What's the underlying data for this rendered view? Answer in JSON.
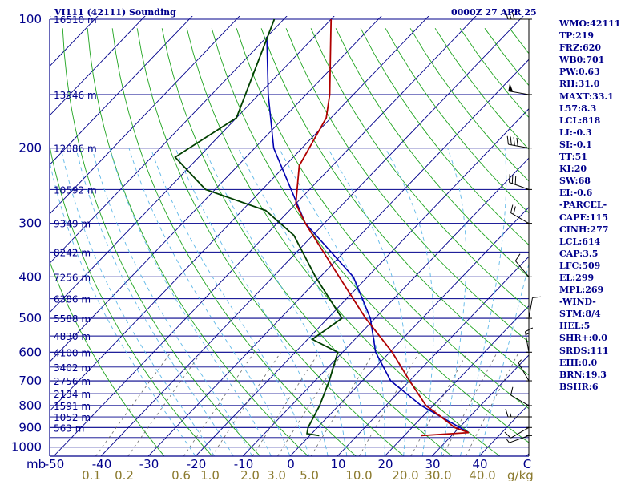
{
  "header": {
    "station": "VI111 (42111) Sounding",
    "time": "0000Z 27 APR 25"
  },
  "indices": [
    "WMO:42111",
    "TP:219",
    "FRZ:620",
    "WB0:701",
    "PW:0.63",
    "RH:31.0",
    "MAXT:33.1",
    "L57:8.3",
    "LCL:818",
    "LI:-0.3",
    "SI:-0.1",
    "TT:51",
    "KI:20",
    "SW:68",
    "EI:-0.6",
    "-PARCEL-",
    "CAPE:115",
    "CINH:277",
    "LCL:614",
    "CAP:3.5",
    "LFC:509",
    "EL:299",
    "MPL:269",
    "-WIND-",
    "STM:8/4",
    "HEL:5",
    "SHR+:0.0",
    "SRDS:111",
    "EHI:0.0",
    "BRN:19.3",
    "BSHR:6"
  ],
  "colors": {
    "isobar": "#00008b",
    "isotherm": "#00008b",
    "dry_adiabat": "#1fa41f",
    "moist_adiabat": "#5fb8e8",
    "mixing_ratio": "#666666",
    "temperature": "#b00000",
    "dewpoint": "#004000",
    "parcel": "#0000b0",
    "wind": "#000000",
    "wind_ratio_labels": "#8b7a2e"
  },
  "chart_data": {
    "type": "skew-t",
    "pressure_unit": "mb",
    "mixing_ratio_unit": "g/kg",
    "pressure_ticks": [
      100,
      200,
      300,
      400,
      500,
      600,
      700,
      800,
      900,
      1000
    ],
    "isotherm_ticks": [
      "-50",
      "-40",
      "-30",
      "-20",
      "-10",
      "0",
      "10",
      "20",
      "30",
      "40",
      "C"
    ],
    "mixing_ratio_ticks": [
      "0.1",
      "0.2",
      "0.6",
      "1.0",
      "2.0",
      "3.0",
      "5.0",
      "10.0",
      "20.0",
      "30.0",
      "40.0"
    ],
    "mixing_ratio_values": [
      0.1,
      0.2,
      0.6,
      1.0,
      2.0,
      3.0,
      5.0,
      10.0,
      20.0,
      30.0,
      40.0
    ],
    "plim": [
      100,
      1050
    ],
    "tlim_at_bottom": [
      -50,
      50
    ],
    "heights": [
      {
        "p": 100,
        "label": "16510 m"
      },
      {
        "p": 150,
        "label": "13946 m"
      },
      {
        "p": 200,
        "label": "12086 m"
      },
      {
        "p": 250,
        "label": "10592 m"
      },
      {
        "p": 300,
        "label": "9349 m"
      },
      {
        "p": 350,
        "label": "8242 m"
      },
      {
        "p": 400,
        "label": "7256 m"
      },
      {
        "p": 450,
        "label": "6386 m"
      },
      {
        "p": 500,
        "label": "5588 m"
      },
      {
        "p": 550,
        "label": "4830 m"
      },
      {
        "p": 600,
        "label": "4100 m"
      },
      {
        "p": 650,
        "label": "3402 m"
      },
      {
        "p": 700,
        "label": "2756 m"
      },
      {
        "p": 750,
        "label": "2134 m"
      },
      {
        "p": 800,
        "label": "1591 m"
      },
      {
        "p": 850,
        "label": "1052 m"
      },
      {
        "p": 900,
        "label": "563 m"
      }
    ],
    "temperature": [
      {
        "p": 940,
        "t": 23.5
      },
      {
        "p": 925,
        "t": 33.0
      },
      {
        "p": 900,
        "t": 29.0
      },
      {
        "p": 850,
        "t": 24.0
      },
      {
        "p": 800,
        "t": 18.5
      },
      {
        "p": 700,
        "t": 10.0
      },
      {
        "p": 600,
        "t": 0.5
      },
      {
        "p": 500,
        "t": -12.0
      },
      {
        "p": 400,
        "t": -26.0
      },
      {
        "p": 300,
        "t": -44.0
      },
      {
        "p": 270,
        "t": -50.0
      },
      {
        "p": 220,
        "t": -57.0
      },
      {
        "p": 170,
        "t": -61.0
      },
      {
        "p": 150,
        "t": -65.0
      },
      {
        "p": 100,
        "t": -80.0
      }
    ],
    "dewpoint": [
      {
        "p": 940,
        "t": 2.0
      },
      {
        "p": 930,
        "t": -1.0
      },
      {
        "p": 900,
        "t": -2.0
      },
      {
        "p": 800,
        "t": -4.0
      },
      {
        "p": 700,
        "t": -7.0
      },
      {
        "p": 600,
        "t": -11.0
      },
      {
        "p": 560,
        "t": -19.0
      },
      {
        "p": 500,
        "t": -17.0
      },
      {
        "p": 400,
        "t": -31.0
      },
      {
        "p": 320,
        "t": -44.0
      },
      {
        "p": 280,
        "t": -55.0
      },
      {
        "p": 250,
        "t": -72.0
      },
      {
        "p": 210,
        "t": -85.0
      },
      {
        "p": 170,
        "t": -80.0
      },
      {
        "p": 100,
        "t": -92.0
      }
    ],
    "parcel": [
      {
        "p": 925,
        "t": 33.0
      },
      {
        "p": 800,
        "t": 17.5
      },
      {
        "p": 700,
        "t": 6.0
      },
      {
        "p": 600,
        "t": -3.0
      },
      {
        "p": 500,
        "t": -11.0
      },
      {
        "p": 400,
        "t": -23.0
      },
      {
        "p": 300,
        "t": -44.0
      },
      {
        "p": 200,
        "t": -66.0
      },
      {
        "p": 150,
        "t": -78.0
      },
      {
        "p": 110,
        "t": -90.0
      }
    ],
    "winds": [
      {
        "p": 940,
        "dir": 250,
        "spd": 5
      },
      {
        "p": 900,
        "dir": 240,
        "spd": 10
      },
      {
        "p": 850,
        "dir": 270,
        "spd": 15
      },
      {
        "p": 800,
        "dir": 300,
        "spd": 10
      },
      {
        "p": 700,
        "dir": 330,
        "spd": 5
      },
      {
        "p": 600,
        "dir": 350,
        "spd": 15
      },
      {
        "p": 500,
        "dir": 10,
        "spd": 10
      },
      {
        "p": 400,
        "dir": 320,
        "spd": 10
      },
      {
        "p": 300,
        "dir": 300,
        "spd": 20
      },
      {
        "p": 250,
        "dir": 290,
        "spd": 30
      },
      {
        "p": 200,
        "dir": 280,
        "spd": 40
      },
      {
        "p": 150,
        "dir": 280,
        "spd": 50
      },
      {
        "p": 100,
        "dir": 270,
        "spd": 30
      }
    ]
  }
}
